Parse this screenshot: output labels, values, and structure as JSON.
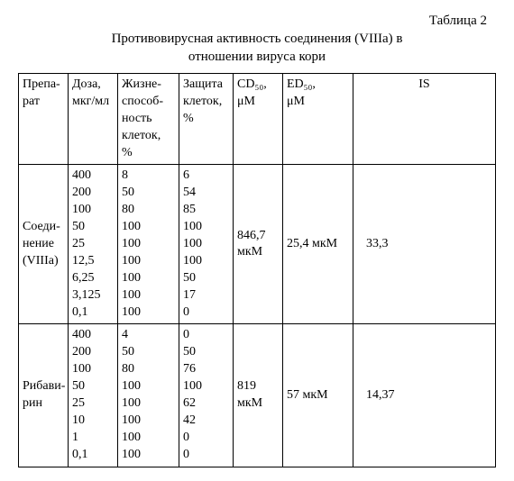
{
  "table_label": "Таблица 2",
  "title_line1": "Противовирусная активность соединения (VIIIa) в",
  "title_line2": "отношении вируса кори",
  "headers": {
    "prep": "Препа-\nрат",
    "dose": "Доза,\nмкг/мл",
    "viability": "Жизне-\nспособ-\nность\nклеток,\n%",
    "protection": "Защита\nклеток,\n%",
    "cd50": "CD₅₀,\nμM",
    "ed50": "ED₅₀,\nμM",
    "is": "IS"
  },
  "rows": [
    {
      "prep": "Соеди-\nнение\n(VIIIa)",
      "dose": [
        "400",
        "200",
        "100",
        "50",
        "25",
        "12,5",
        "6,25",
        "3,125",
        "0,1"
      ],
      "viability": [
        "8",
        "50",
        "80",
        "100",
        "100",
        "100",
        "100",
        "100",
        "100"
      ],
      "protection": [
        "6",
        "54",
        "85",
        "100",
        "100",
        "100",
        "50",
        "17",
        "0"
      ],
      "cd50": "846,7\nмкМ",
      "ed50": "25,4 мкМ",
      "is": "33,3"
    },
    {
      "prep": "Рибави-\nрин",
      "dose": [
        "400",
        "200",
        "100",
        "50",
        "25",
        "10",
        "1",
        "0,1"
      ],
      "viability": [
        "4",
        "50",
        "80",
        "100",
        "100",
        "100",
        "100",
        "100"
      ],
      "protection": [
        "0",
        "50",
        "76",
        "100",
        "62",
        "42",
        "0",
        "0"
      ],
      "cd50": "819\nмкМ",
      "ed50": "57 мкМ",
      "is": "14,37"
    }
  ]
}
